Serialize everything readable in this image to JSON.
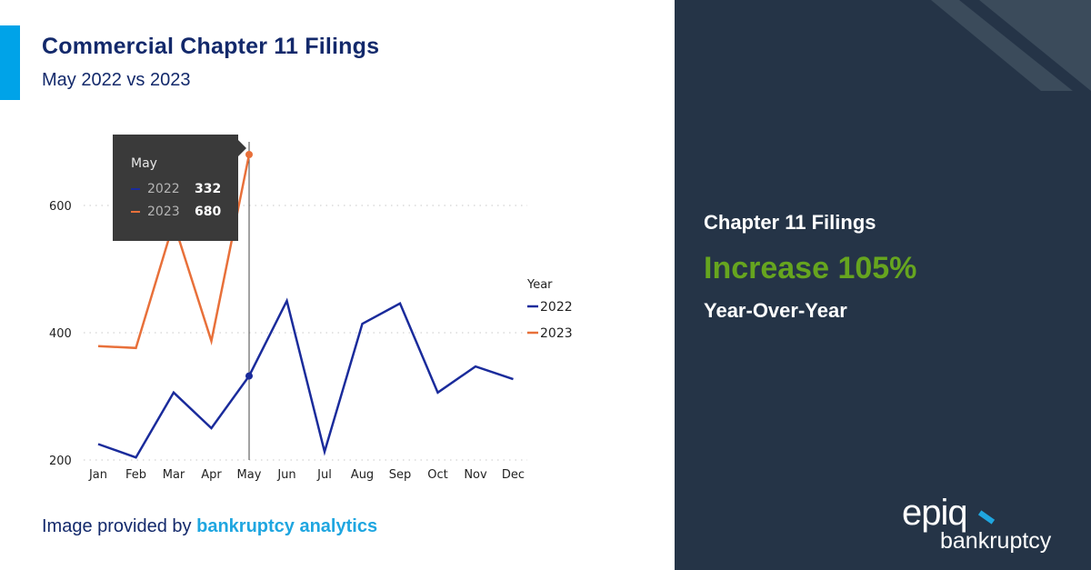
{
  "header": {
    "title": "Commercial Chapter 11 Filings",
    "subtitle": "May 2022 vs 2023"
  },
  "credit": {
    "prefix": "Image provided by ",
    "brand": "bankruptcy analytics"
  },
  "tooltip": {
    "title": "May",
    "rows": [
      {
        "year": "2022",
        "value": "332",
        "color": "#1a2b9b"
      },
      {
        "year": "2023",
        "value": "680",
        "color": "#e8703a"
      }
    ]
  },
  "legend": {
    "title": "Year",
    "items": [
      {
        "label": "2022",
        "color": "#1a2b9b"
      },
      {
        "label": "2023",
        "color": "#e8703a"
      }
    ]
  },
  "right_panel": {
    "heading": "Chapter 11 Filings",
    "highlight": "Increase 105%",
    "subheading": "Year-Over-Year",
    "highlight_color": "#66a51f",
    "background": "#253447"
  },
  "logo": {
    "top": "epiq",
    "bottom": "bankruptcy"
  },
  "chart_data": {
    "type": "line",
    "title": "Commercial Chapter 11 Filings",
    "subtitle": "May 2022 vs 2023",
    "xlabel": "",
    "ylabel": "",
    "categories": [
      "Jan",
      "Feb",
      "Mar",
      "Apr",
      "May",
      "Jun",
      "Jul",
      "Aug",
      "Sep",
      "Oct",
      "Nov",
      "Dec"
    ],
    "yticks": [
      200,
      400,
      600
    ],
    "ylim": [
      200,
      700
    ],
    "grid": "horizontal dotted",
    "legend_title": "Year",
    "legend_position": "right",
    "hover_month": "May",
    "series": [
      {
        "name": "2022",
        "color": "#1a2b9b",
        "values": [
          225,
          204,
          306,
          250,
          332,
          450,
          213,
          414,
          446,
          306,
          347,
          327
        ]
      },
      {
        "name": "2023",
        "color": "#e8703a",
        "values": [
          379,
          376,
          573,
          387,
          680,
          null,
          null,
          null,
          null,
          null,
          null,
          null
        ]
      }
    ]
  }
}
